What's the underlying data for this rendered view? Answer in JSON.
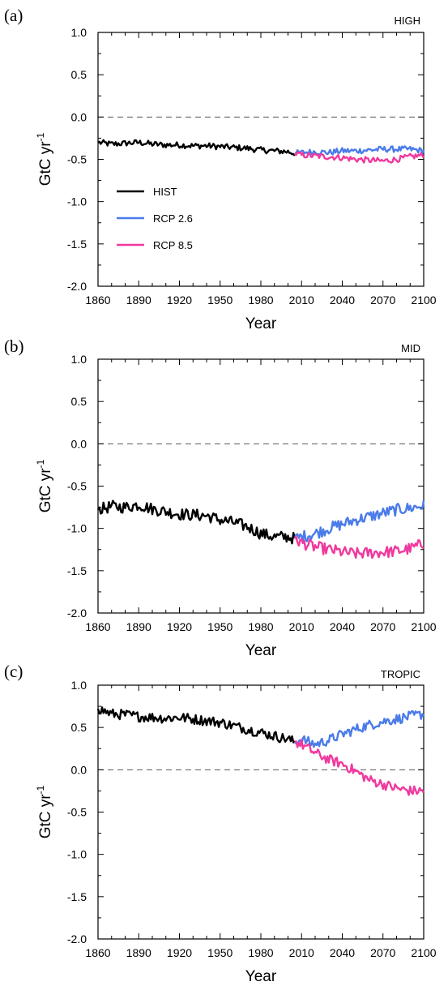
{
  "chart_data": [
    {
      "panel": "(a)",
      "region": "HIGH",
      "type": "line",
      "xlabel": "Year",
      "ylabel": "GtC yr",
      "ylabel_sup": "-1",
      "xlim": [
        1860,
        2100
      ],
      "ylim": [
        -2.0,
        1.0
      ],
      "xticks": [
        "1860",
        "1890",
        "1920",
        "1950",
        "1980",
        "2010",
        "2040",
        "2070",
        "2100"
      ],
      "yticks": [
        "1.0",
        "0.5",
        "0.0",
        "-0.5",
        "-1.0",
        "-1.5",
        "-2.0"
      ],
      "reference_line": 0.0,
      "legend": {
        "placement": "center-left",
        "entries": [
          "HIST",
          "RCP 2.6",
          "RCP 8.5"
        ]
      },
      "series": [
        {
          "name": "HIST",
          "color": "#000000",
          "x": [
            1860,
            1870,
            1880,
            1890,
            1900,
            1910,
            1920,
            1930,
            1940,
            1950,
            1960,
            1970,
            1980,
            1990,
            2000,
            2005
          ],
          "y": [
            -0.3,
            -0.32,
            -0.31,
            -0.3,
            -0.32,
            -0.33,
            -0.33,
            -0.34,
            -0.34,
            -0.35,
            -0.36,
            -0.37,
            -0.39,
            -0.4,
            -0.41,
            -0.43
          ]
        },
        {
          "name": "RCP 2.6",
          "color": "#4a7bea",
          "x": [
            2005,
            2010,
            2020,
            2030,
            2040,
            2050,
            2060,
            2070,
            2080,
            2090,
            2100
          ],
          "y": [
            -0.43,
            -0.42,
            -0.41,
            -0.42,
            -0.4,
            -0.4,
            -0.39,
            -0.38,
            -0.38,
            -0.38,
            -0.4
          ]
        },
        {
          "name": "RCP 8.5",
          "color": "#f0399e",
          "x": [
            2005,
            2010,
            2020,
            2030,
            2040,
            2050,
            2060,
            2070,
            2080,
            2090,
            2100
          ],
          "y": [
            -0.43,
            -0.45,
            -0.46,
            -0.47,
            -0.48,
            -0.5,
            -0.51,
            -0.52,
            -0.5,
            -0.47,
            -0.45
          ]
        }
      ]
    },
    {
      "panel": "(b)",
      "region": "MID",
      "type": "line",
      "xlabel": "Year",
      "ylabel": "GtC yr",
      "ylabel_sup": "-1",
      "xlim": [
        1860,
        2100
      ],
      "ylim": [
        -2.0,
        1.0
      ],
      "xticks": [
        "1860",
        "1890",
        "1920",
        "1950",
        "1980",
        "2010",
        "2040",
        "2070",
        "2100"
      ],
      "yticks": [
        "1.0",
        "0.5",
        "0.0",
        "-0.5",
        "-1.0",
        "-1.5",
        "-2.0"
      ],
      "reference_line": 0.0,
      "series": [
        {
          "name": "HIST",
          "color": "#000000",
          "x": [
            1860,
            1870,
            1880,
            1890,
            1900,
            1910,
            1920,
            1930,
            1940,
            1950,
            1960,
            1970,
            1980,
            1990,
            2000,
            2005
          ],
          "y": [
            -0.78,
            -0.74,
            -0.75,
            -0.72,
            -0.77,
            -0.8,
            -0.83,
            -0.84,
            -0.85,
            -0.9,
            -0.93,
            -0.98,
            -1.06,
            -1.1,
            -1.1,
            -1.12
          ]
        },
        {
          "name": "RCP 2.6",
          "color": "#4a7bea",
          "x": [
            2005,
            2010,
            2020,
            2030,
            2040,
            2050,
            2060,
            2070,
            2080,
            2090,
            2100
          ],
          "y": [
            -1.12,
            -1.1,
            -1.06,
            -1.0,
            -0.95,
            -0.9,
            -0.86,
            -0.82,
            -0.78,
            -0.76,
            -0.73
          ]
        },
        {
          "name": "RCP 8.5",
          "color": "#f0399e",
          "x": [
            2005,
            2010,
            2020,
            2030,
            2040,
            2050,
            2060,
            2070,
            2080,
            2090,
            2100
          ],
          "y": [
            -1.12,
            -1.17,
            -1.22,
            -1.25,
            -1.28,
            -1.3,
            -1.29,
            -1.28,
            -1.27,
            -1.24,
            -1.18
          ]
        }
      ]
    },
    {
      "panel": "(c)",
      "region": "TROPIC",
      "type": "line",
      "xlabel": "Year",
      "ylabel": "GtC yr",
      "ylabel_sup": "-1",
      "xlim": [
        1860,
        2100
      ],
      "ylim": [
        -2.0,
        1.0
      ],
      "xticks": [
        "1860",
        "1890",
        "1920",
        "1950",
        "1980",
        "2010",
        "2040",
        "2070",
        "2100"
      ],
      "yticks": [
        "1.0",
        "0.5",
        "0.0",
        "-0.5",
        "-1.0",
        "-1.5",
        "-2.0"
      ],
      "reference_line": 0.0,
      "series": [
        {
          "name": "HIST",
          "color": "#000000",
          "x": [
            1860,
            1870,
            1880,
            1890,
            1900,
            1910,
            1920,
            1930,
            1940,
            1950,
            1960,
            1970,
            1980,
            1990,
            2000,
            2005
          ],
          "y": [
            0.72,
            0.66,
            0.65,
            0.63,
            0.62,
            0.61,
            0.62,
            0.6,
            0.58,
            0.56,
            0.52,
            0.48,
            0.44,
            0.4,
            0.36,
            0.33
          ]
        },
        {
          "name": "RCP 2.6",
          "color": "#4a7bea",
          "x": [
            2005,
            2010,
            2020,
            2030,
            2040,
            2050,
            2060,
            2070,
            2080,
            2090,
            2100
          ],
          "y": [
            0.33,
            0.36,
            0.3,
            0.35,
            0.42,
            0.48,
            0.53,
            0.57,
            0.6,
            0.63,
            0.66
          ]
        },
        {
          "name": "RCP 8.5",
          "color": "#f0399e",
          "x": [
            2005,
            2010,
            2020,
            2030,
            2040,
            2050,
            2060,
            2070,
            2080,
            2090,
            2100
          ],
          "y": [
            0.33,
            0.3,
            0.2,
            0.12,
            0.07,
            -0.02,
            -0.12,
            -0.17,
            -0.22,
            -0.25,
            -0.25
          ]
        }
      ]
    }
  ]
}
